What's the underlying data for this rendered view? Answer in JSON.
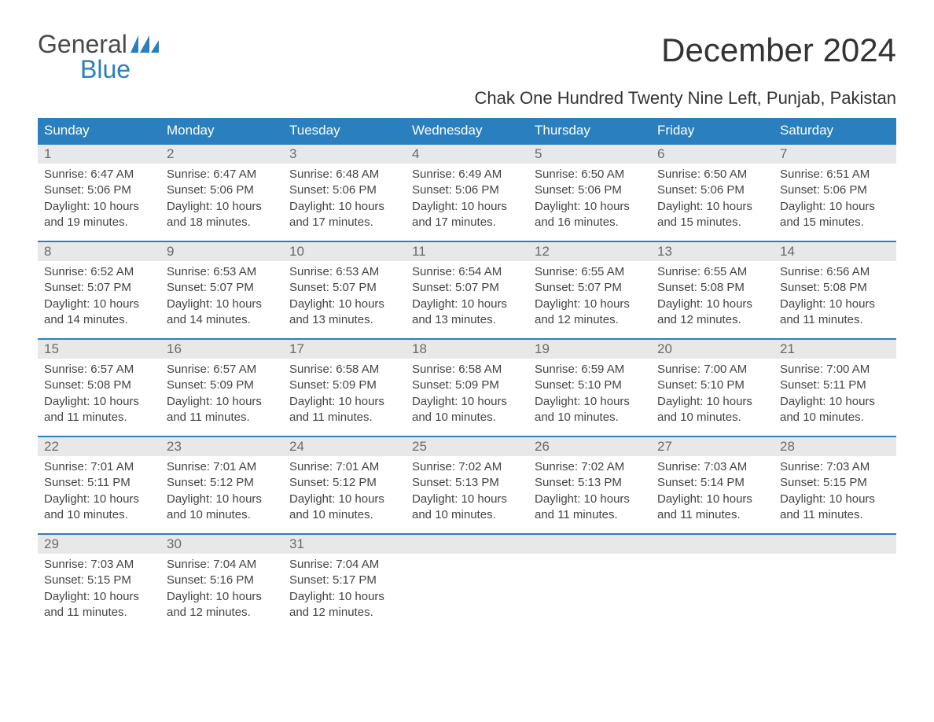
{
  "logo": {
    "line1": "General",
    "line2": "Blue"
  },
  "title": "December 2024",
  "subtitle": "Chak One Hundred Twenty Nine Left, Punjab, Pakistan",
  "colors": {
    "header_bg": "#2a7fbf",
    "header_text": "#ffffff",
    "daynum_bg": "#e8e8e8",
    "daynum_text": "#6a6a6a",
    "body_text": "#444444",
    "rule": "#2a7fbf",
    "page_bg": "#ffffff"
  },
  "dayNames": [
    "Sunday",
    "Monday",
    "Tuesday",
    "Wednesday",
    "Thursday",
    "Friday",
    "Saturday"
  ],
  "weeks": [
    [
      {
        "num": "1",
        "sunrise": "6:47 AM",
        "sunset": "5:06 PM",
        "daylight": "10 hours and 19 minutes."
      },
      {
        "num": "2",
        "sunrise": "6:47 AM",
        "sunset": "5:06 PM",
        "daylight": "10 hours and 18 minutes."
      },
      {
        "num": "3",
        "sunrise": "6:48 AM",
        "sunset": "5:06 PM",
        "daylight": "10 hours and 17 minutes."
      },
      {
        "num": "4",
        "sunrise": "6:49 AM",
        "sunset": "5:06 PM",
        "daylight": "10 hours and 17 minutes."
      },
      {
        "num": "5",
        "sunrise": "6:50 AM",
        "sunset": "5:06 PM",
        "daylight": "10 hours and 16 minutes."
      },
      {
        "num": "6",
        "sunrise": "6:50 AM",
        "sunset": "5:06 PM",
        "daylight": "10 hours and 15 minutes."
      },
      {
        "num": "7",
        "sunrise": "6:51 AM",
        "sunset": "5:06 PM",
        "daylight": "10 hours and 15 minutes."
      }
    ],
    [
      {
        "num": "8",
        "sunrise": "6:52 AM",
        "sunset": "5:07 PM",
        "daylight": "10 hours and 14 minutes."
      },
      {
        "num": "9",
        "sunrise": "6:53 AM",
        "sunset": "5:07 PM",
        "daylight": "10 hours and 14 minutes."
      },
      {
        "num": "10",
        "sunrise": "6:53 AM",
        "sunset": "5:07 PM",
        "daylight": "10 hours and 13 minutes."
      },
      {
        "num": "11",
        "sunrise": "6:54 AM",
        "sunset": "5:07 PM",
        "daylight": "10 hours and 13 minutes."
      },
      {
        "num": "12",
        "sunrise": "6:55 AM",
        "sunset": "5:07 PM",
        "daylight": "10 hours and 12 minutes."
      },
      {
        "num": "13",
        "sunrise": "6:55 AM",
        "sunset": "5:08 PM",
        "daylight": "10 hours and 12 minutes."
      },
      {
        "num": "14",
        "sunrise": "6:56 AM",
        "sunset": "5:08 PM",
        "daylight": "10 hours and 11 minutes."
      }
    ],
    [
      {
        "num": "15",
        "sunrise": "6:57 AM",
        "sunset": "5:08 PM",
        "daylight": "10 hours and 11 minutes."
      },
      {
        "num": "16",
        "sunrise": "6:57 AM",
        "sunset": "5:09 PM",
        "daylight": "10 hours and 11 minutes."
      },
      {
        "num": "17",
        "sunrise": "6:58 AM",
        "sunset": "5:09 PM",
        "daylight": "10 hours and 11 minutes."
      },
      {
        "num": "18",
        "sunrise": "6:58 AM",
        "sunset": "5:09 PM",
        "daylight": "10 hours and 10 minutes."
      },
      {
        "num": "19",
        "sunrise": "6:59 AM",
        "sunset": "5:10 PM",
        "daylight": "10 hours and 10 minutes."
      },
      {
        "num": "20",
        "sunrise": "7:00 AM",
        "sunset": "5:10 PM",
        "daylight": "10 hours and 10 minutes."
      },
      {
        "num": "21",
        "sunrise": "7:00 AM",
        "sunset": "5:11 PM",
        "daylight": "10 hours and 10 minutes."
      }
    ],
    [
      {
        "num": "22",
        "sunrise": "7:01 AM",
        "sunset": "5:11 PM",
        "daylight": "10 hours and 10 minutes."
      },
      {
        "num": "23",
        "sunrise": "7:01 AM",
        "sunset": "5:12 PM",
        "daylight": "10 hours and 10 minutes."
      },
      {
        "num": "24",
        "sunrise": "7:01 AM",
        "sunset": "5:12 PM",
        "daylight": "10 hours and 10 minutes."
      },
      {
        "num": "25",
        "sunrise": "7:02 AM",
        "sunset": "5:13 PM",
        "daylight": "10 hours and 10 minutes."
      },
      {
        "num": "26",
        "sunrise": "7:02 AM",
        "sunset": "5:13 PM",
        "daylight": "10 hours and 11 minutes."
      },
      {
        "num": "27",
        "sunrise": "7:03 AM",
        "sunset": "5:14 PM",
        "daylight": "10 hours and 11 minutes."
      },
      {
        "num": "28",
        "sunrise": "7:03 AM",
        "sunset": "5:15 PM",
        "daylight": "10 hours and 11 minutes."
      }
    ],
    [
      {
        "num": "29",
        "sunrise": "7:03 AM",
        "sunset": "5:15 PM",
        "daylight": "10 hours and 11 minutes."
      },
      {
        "num": "30",
        "sunrise": "7:04 AM",
        "sunset": "5:16 PM",
        "daylight": "10 hours and 12 minutes."
      },
      {
        "num": "31",
        "sunrise": "7:04 AM",
        "sunset": "5:17 PM",
        "daylight": "10 hours and 12 minutes."
      },
      null,
      null,
      null,
      null
    ]
  ],
  "labels": {
    "sunrise": "Sunrise:",
    "sunset": "Sunset:",
    "daylight": "Daylight:"
  }
}
